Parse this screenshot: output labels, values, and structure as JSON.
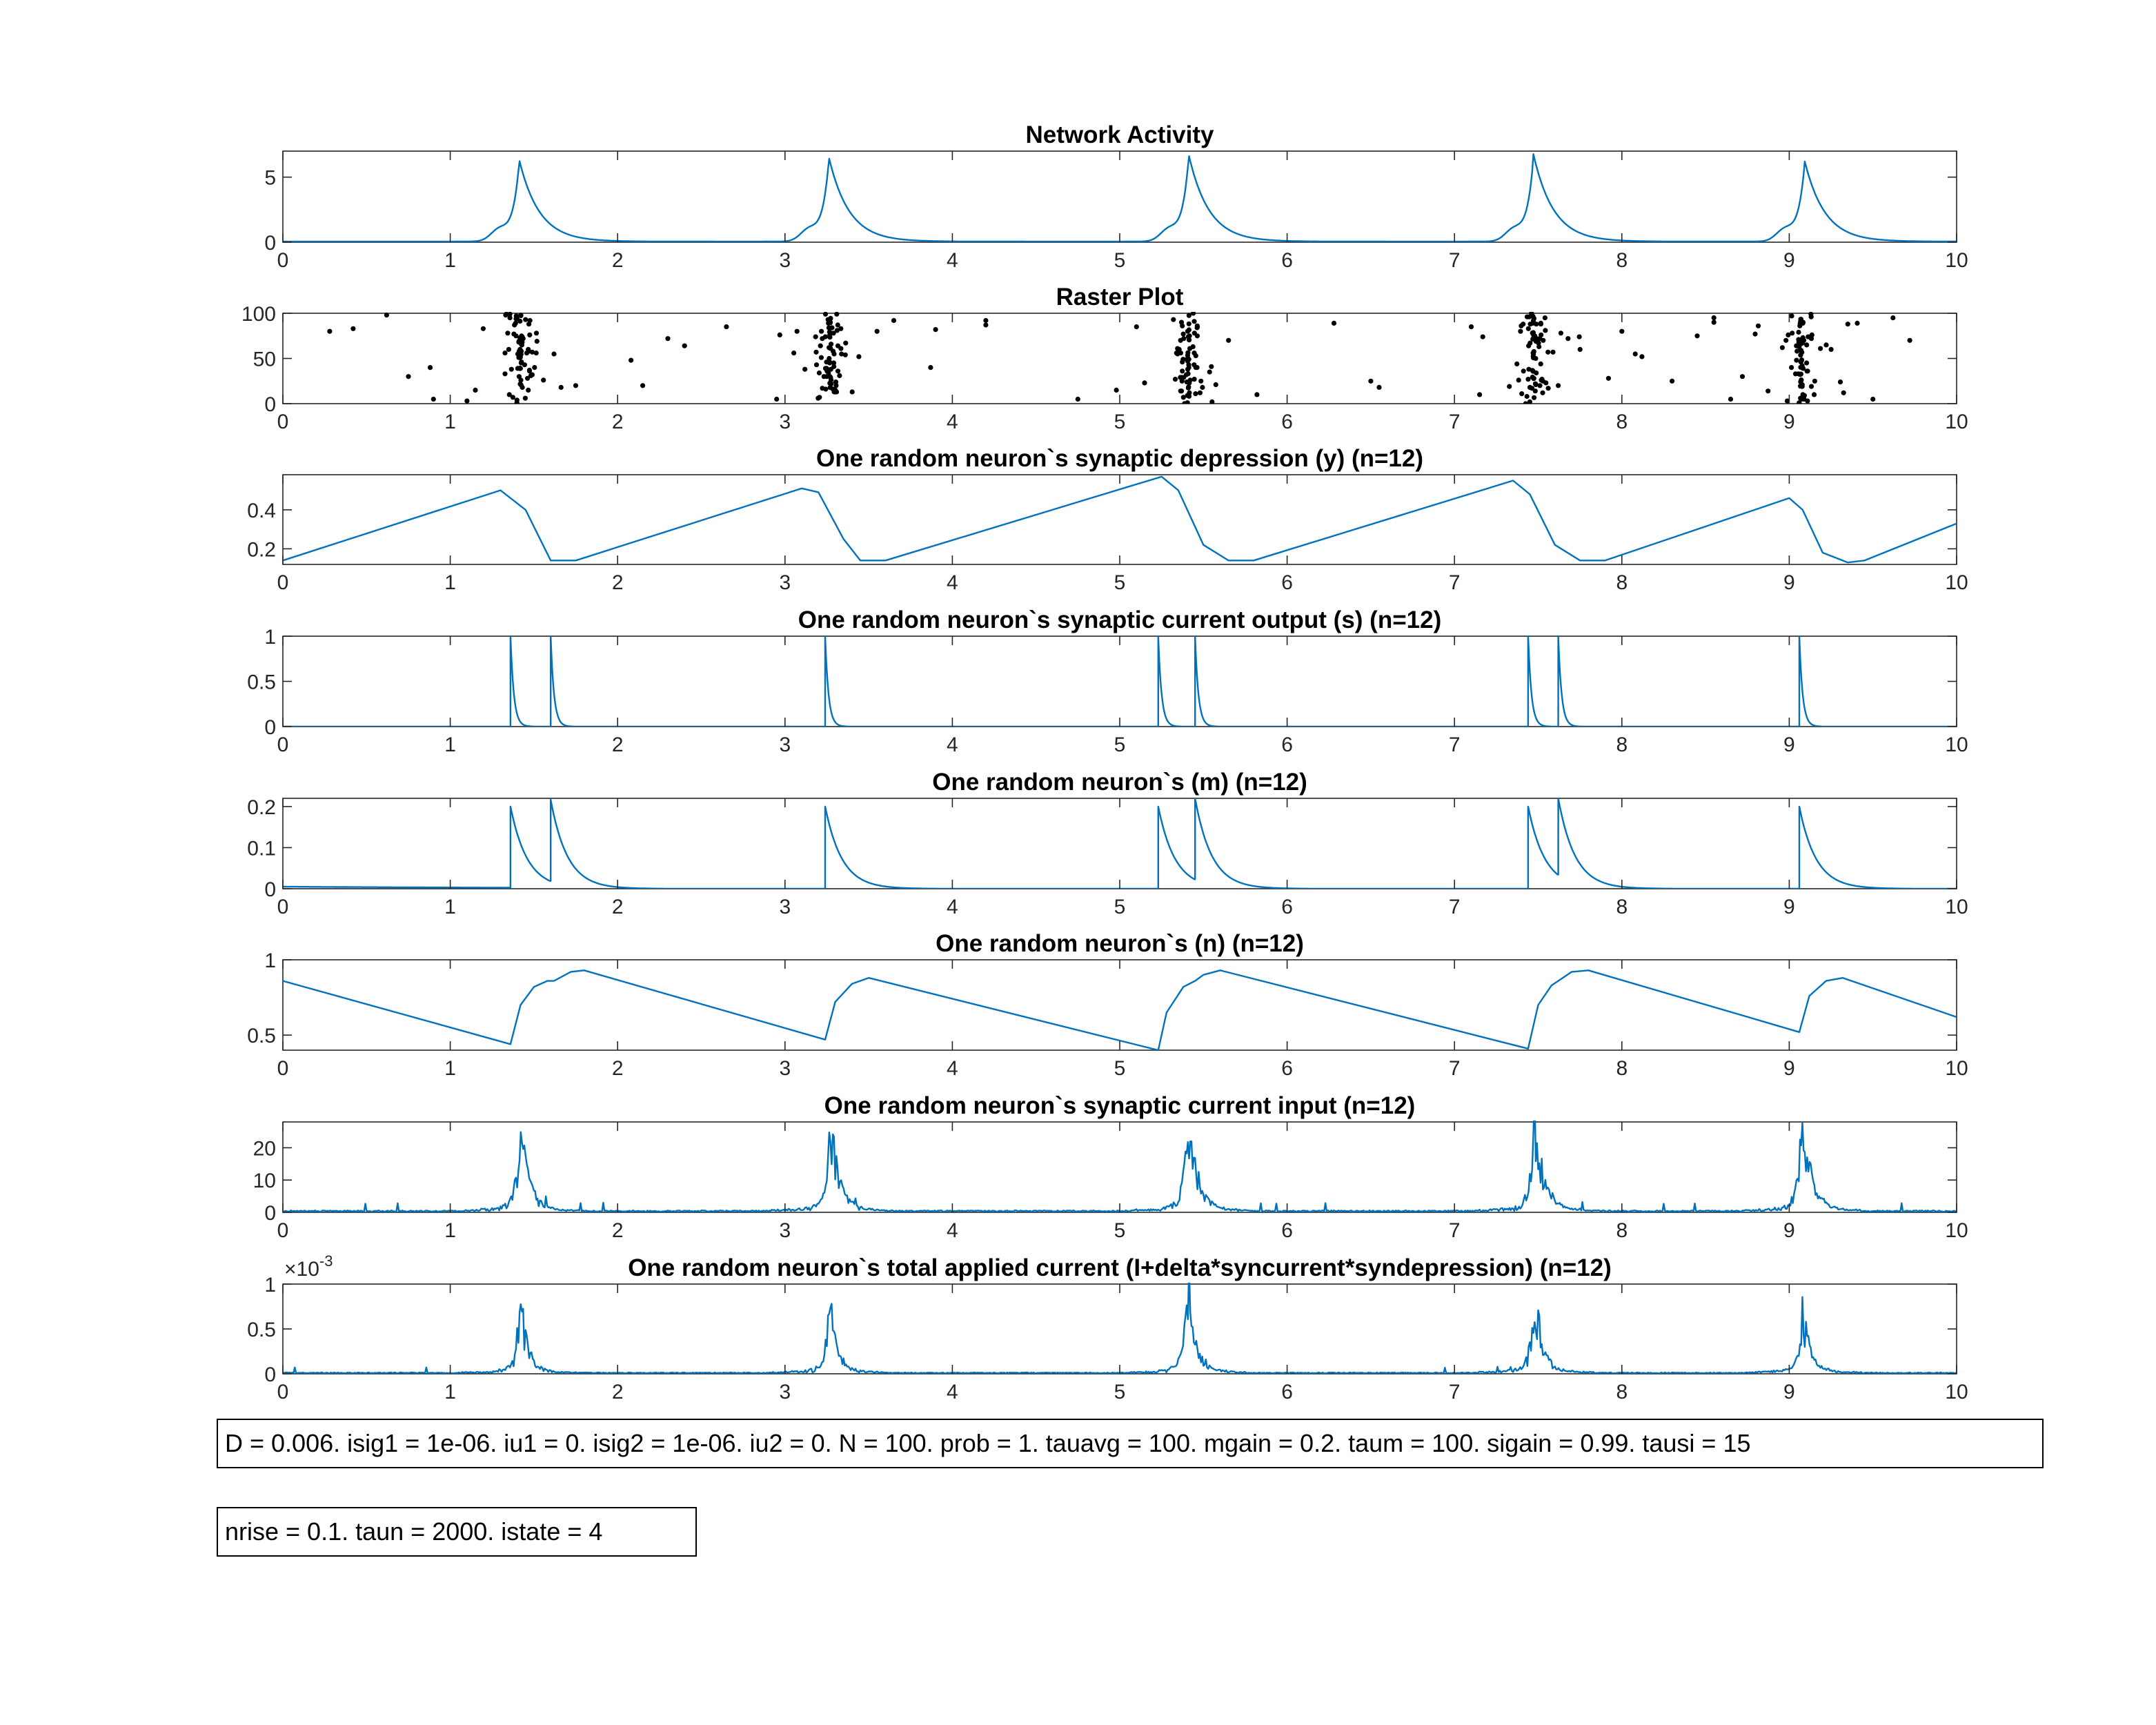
{
  "chart_data": [
    {
      "type": "line",
      "title": "Network Activity",
      "xlim": [
        0,
        10
      ],
      "ylim": [
        0,
        7
      ],
      "xticks": [
        0,
        1,
        2,
        3,
        4,
        5,
        6,
        7,
        8,
        9,
        10
      ],
      "yticks": [
        0,
        5
      ],
      "series": [
        {
          "color": "#0072BD",
          "kind": "bursts",
          "baseline": 0.05,
          "bursts": [
            {
              "t": 1.41,
              "peak": 6.4
            },
            {
              "t": 3.26,
              "peak": 6.6
            },
            {
              "t": 5.41,
              "peak": 6.8
            },
            {
              "t": 7.47,
              "peak": 6.8
            },
            {
              "t": 9.09,
              "peak": 6.3
            }
          ],
          "decay": 0.12
        }
      ]
    },
    {
      "type": "scatter",
      "title": "Raster Plot",
      "xlim": [
        0,
        10
      ],
      "ylim": [
        0,
        100
      ],
      "xticks": [
        0,
        1,
        2,
        3,
        4,
        5,
        6,
        7,
        8,
        9,
        10
      ],
      "yticks": [
        0,
        50,
        100
      ],
      "series": [
        {
          "color": "#000000",
          "kind": "raster",
          "neurons": 100,
          "bursts": [
            1.42,
            3.27,
            5.41,
            7.47,
            9.07
          ],
          "isolated": [
            [
              0.28,
              80
            ],
            [
              0.42,
              83
            ],
            [
              0.62,
              98
            ],
            [
              0.75,
              30
            ],
            [
              0.88,
              40
            ],
            [
              0.9,
              5
            ],
            [
              1.1,
              3
            ],
            [
              1.15,
              15
            ],
            [
              1.62,
              55
            ],
            [
              1.75,
              20
            ],
            [
              2.08,
              48
            ],
            [
              2.15,
              20
            ],
            [
              2.3,
              72
            ],
            [
              2.4,
              64
            ],
            [
              2.65,
              85
            ],
            [
              2.95,
              5
            ],
            [
              3.55,
              80
            ],
            [
              3.65,
              92
            ],
            [
              3.9,
              82
            ],
            [
              3.87,
              40
            ],
            [
              4.2,
              92
            ],
            [
              4.2,
              87
            ],
            [
              4.75,
              5
            ],
            [
              4.98,
              15
            ],
            [
              5.1,
              85
            ],
            [
              5.65,
              70
            ],
            [
              5.82,
              10
            ],
            [
              6.28,
              89
            ],
            [
              6.5,
              25
            ],
            [
              6.55,
              18
            ],
            [
              7.1,
              85
            ],
            [
              7.15,
              10
            ],
            [
              7.62,
              20
            ],
            [
              7.75,
              60
            ],
            [
              7.92,
              28
            ],
            [
              8.0,
              80
            ],
            [
              8.08,
              55
            ],
            [
              8.12,
              52
            ],
            [
              8.3,
              25
            ],
            [
              8.45,
              75
            ],
            [
              8.55,
              90
            ],
            [
              8.55,
              95
            ],
            [
              8.65,
              5
            ],
            [
              8.72,
              30
            ],
            [
              9.25,
              60
            ],
            [
              9.35,
              88
            ],
            [
              9.5,
              5
            ],
            [
              9.62,
              95
            ],
            [
              9.72,
              70
            ]
          ],
          "burst_points": 60
        }
      ]
    },
    {
      "type": "line",
      "title": "One random neuron`s synaptic depression (y) (n=12)",
      "xlim": [
        0,
        10
      ],
      "ylim": [
        0.12,
        0.58
      ],
      "xticks": [
        0,
        1,
        2,
        3,
        4,
        5,
        6,
        7,
        8,
        9,
        10
      ],
      "yticks": [
        0.2,
        0.4
      ],
      "series": [
        {
          "color": "#0072BD",
          "kind": "depression",
          "points": [
            [
              0,
              0.14
            ],
            [
              1.3,
              0.5
            ],
            [
              1.45,
              0.4
            ],
            [
              1.6,
              0.14
            ],
            [
              1.75,
              0.14
            ],
            [
              3.1,
              0.51
            ],
            [
              3.2,
              0.49
            ],
            [
              3.35,
              0.25
            ],
            [
              3.45,
              0.14
            ],
            [
              3.6,
              0.14
            ],
            [
              5.25,
              0.57
            ],
            [
              5.35,
              0.5
            ],
            [
              5.5,
              0.22
            ],
            [
              5.65,
              0.14
            ],
            [
              5.8,
              0.14
            ],
            [
              7.35,
              0.55
            ],
            [
              7.45,
              0.48
            ],
            [
              7.6,
              0.22
            ],
            [
              7.75,
              0.14
            ],
            [
              7.9,
              0.14
            ],
            [
              9.0,
              0.46
            ],
            [
              9.08,
              0.4
            ],
            [
              9.2,
              0.18
            ],
            [
              9.35,
              0.13
            ],
            [
              9.45,
              0.14
            ],
            [
              10.0,
              0.33
            ]
          ]
        }
      ]
    },
    {
      "type": "line",
      "title": "One random neuron`s synaptic current output (s) (n=12)",
      "xlim": [
        0,
        10
      ],
      "ylim": [
        0,
        1
      ],
      "xticks": [
        0,
        1,
        2,
        3,
        4,
        5,
        6,
        7,
        8,
        9,
        10
      ],
      "yticks": [
        0,
        0.5,
        1
      ],
      "series": [
        {
          "color": "#0072BD",
          "kind": "spikes",
          "spikes": [
            1.36,
            1.6,
            3.24,
            5.23,
            5.45,
            7.44,
            7.62,
            9.06
          ],
          "peak": 1.0,
          "tau": 0.02,
          "baseline": 0.0
        }
      ]
    },
    {
      "type": "line",
      "title": "One random neuron`s (m) (n=12)",
      "xlim": [
        0,
        10
      ],
      "ylim": [
        0,
        0.22
      ],
      "xticks": [
        0,
        1,
        2,
        3,
        4,
        5,
        6,
        7,
        8,
        9,
        10
      ],
      "yticks": [
        0,
        0.1,
        0.2
      ],
      "series": [
        {
          "color": "#0072BD",
          "kind": "mdecay",
          "spikes": [
            1.36,
            1.6,
            3.24,
            5.23,
            5.45,
            7.44,
            7.62,
            9.06
          ],
          "gain": 0.2,
          "tau": 0.1,
          "initial": 0.005
        }
      ]
    },
    {
      "type": "line",
      "title": "One random neuron`s (n) (n=12)",
      "xlim": [
        0,
        10
      ],
      "ylim": [
        0.4,
        1.0
      ],
      "xticks": [
        0,
        1,
        2,
        3,
        4,
        5,
        6,
        7,
        8,
        9,
        10
      ],
      "yticks": [
        0.5,
        1
      ],
      "series": [
        {
          "color": "#0072BD",
          "kind": "ncurve",
          "points": [
            [
              0,
              0.86
            ],
            [
              1.36,
              0.44
            ],
            [
              1.42,
              0.7
            ],
            [
              1.5,
              0.82
            ],
            [
              1.58,
              0.86
            ],
            [
              1.62,
              0.86
            ],
            [
              1.72,
              0.92
            ],
            [
              1.8,
              0.93
            ],
            [
              3.24,
              0.47
            ],
            [
              3.3,
              0.72
            ],
            [
              3.4,
              0.84
            ],
            [
              3.5,
              0.88
            ],
            [
              5.23,
              0.4
            ],
            [
              5.28,
              0.65
            ],
            [
              5.38,
              0.82
            ],
            [
              5.45,
              0.86
            ],
            [
              5.5,
              0.9
            ],
            [
              5.6,
              0.93
            ],
            [
              7.44,
              0.41
            ],
            [
              7.5,
              0.7
            ],
            [
              7.58,
              0.83
            ],
            [
              7.62,
              0.86
            ],
            [
              7.7,
              0.92
            ],
            [
              7.8,
              0.93
            ],
            [
              9.06,
              0.52
            ],
            [
              9.12,
              0.76
            ],
            [
              9.22,
              0.86
            ],
            [
              9.32,
              0.88
            ],
            [
              10.0,
              0.62
            ]
          ]
        }
      ]
    },
    {
      "type": "line",
      "title": "One random neuron`s synaptic current input (n=12)",
      "xlim": [
        0,
        10
      ],
      "ylim": [
        0,
        28
      ],
      "xticks": [
        0,
        1,
        2,
        3,
        4,
        5,
        6,
        7,
        8,
        9,
        10
      ],
      "yticks": [
        0,
        10,
        20
      ],
      "series": [
        {
          "color": "#0072BD",
          "kind": "noisybursts",
          "baseline": 0.4,
          "bursts": [
            {
              "t": 1.42,
              "peak": 24
            },
            {
              "t": 3.27,
              "peak": 24
            },
            {
              "t": 5.41,
              "peak": 28
            },
            {
              "t": 7.48,
              "peak": 26
            },
            {
              "t": 9.08,
              "peak": 26
            }
          ],
          "decay": 0.05,
          "seed": 7
        }
      ]
    },
    {
      "type": "line",
      "title": "One random neuron`s total applied current (I+delta*syncurrent*syndepression) (n=12)",
      "xlim": [
        0,
        10
      ],
      "ylim": [
        0,
        1
      ],
      "xticks": [
        0,
        1,
        2,
        3,
        4,
        5,
        6,
        7,
        8,
        9,
        10
      ],
      "yticks": [
        0,
        0.5,
        1
      ],
      "yexponent_base": "×10",
      "yexponent": "-3",
      "series": [
        {
          "color": "#0072BD",
          "kind": "noisybursts",
          "baseline": 0.01,
          "bursts": [
            {
              "t": 1.42,
              "peak": 0.68
            },
            {
              "t": 3.27,
              "peak": 0.7
            },
            {
              "t": 5.41,
              "peak": 0.95
            },
            {
              "t": 7.48,
              "peak": 0.82
            },
            {
              "t": 9.08,
              "peak": 0.68
            }
          ],
          "decay": 0.04,
          "seed": 13
        }
      ]
    }
  ],
  "annotations": {
    "params_line_1": "D = 0.006. isig1 = 1e-06. iu1 = 0. isig2 = 1e-06. iu2 = 0. N = 100. prob = 1. tauavg = 100. mgain = 0.2. taum = 100. sigain = 0.99. tausi = 15",
    "params_line_2": "nrise = 0.1. taun = 2000. istate = 4"
  }
}
